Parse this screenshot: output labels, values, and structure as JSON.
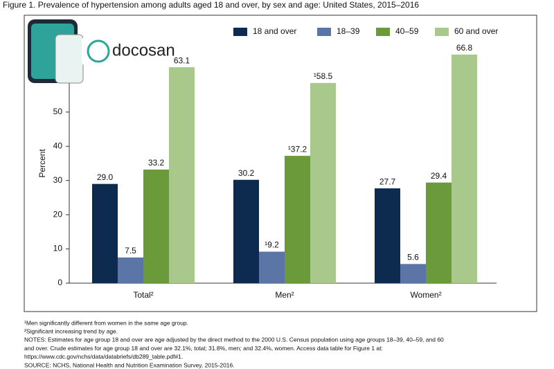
{
  "chart_data": {
    "type": "bar",
    "title": "Figure 1. Prevalence of hypertension among adults aged 18 and over, by sex and age: United States, 2015–2016",
    "y_label": "Percent",
    "categories": [
      "Total²",
      "Men²",
      "Women²"
    ],
    "series": [
      {
        "name": "18 and over",
        "color": "#0d2a4f",
        "values": [
          29.0,
          30.2,
          27.7
        ],
        "value_labels": [
          "29.0",
          "30.2",
          "27.7"
        ]
      },
      {
        "name": "18–39",
        "color": "#5b76a6",
        "values": [
          7.5,
          9.2,
          5.6
        ],
        "value_labels": [
          "7.5",
          "¹9.2",
          "5.6"
        ]
      },
      {
        "name": "40–59",
        "color": "#6a9a3a",
        "values": [
          33.2,
          37.2,
          29.4
        ],
        "value_labels": [
          "33.2",
          "¹37.2",
          "29.4"
        ]
      },
      {
        "name": "60 and over",
        "color": "#a9c88c",
        "values": [
          63.1,
          58.5,
          66.8
        ],
        "value_labels": [
          "63.1",
          "¹58.5",
          "66.8"
        ]
      }
    ],
    "ylim": [
      0,
      70
    ],
    "yticks": [
      0,
      10,
      20,
      30,
      40,
      50
    ],
    "notes": [
      "¹Men significantly different from women in the same age group.",
      "²Significant increasing trend by age.",
      "NOTES: Estimates for age group 18 and over are age adjusted by the direct method to the 2000 U.S. Census population using age groups 18–39, 40–59, and 60",
      "and over. Crude estimates for age group 18 and over are 32.1%, total; 31.8%, men; and 32.4%, women. Access data table for Figure 1 at:",
      "https://www.cdc.gov/nchs/data/databriefs/db289_table.pdf#1.",
      "SOURCE: NCHS, National Health and Nutrition Examination Survey, 2015-2016."
    ],
    "watermark": "docosan"
  }
}
